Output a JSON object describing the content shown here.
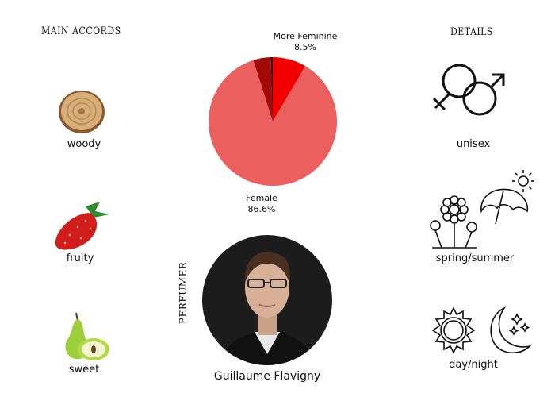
{
  "left": {
    "heading": "MAIN ACCORDS",
    "accords": [
      {
        "label": "woody",
        "icon": "wood-slice-icon"
      },
      {
        "label": "fruity",
        "icon": "strawberry-icon"
      },
      {
        "label": "sweet",
        "icon": "pear-icon"
      }
    ]
  },
  "right": {
    "heading": "DETAILS",
    "items": [
      {
        "label": "unisex",
        "icon": "gender-symbols-icon"
      },
      {
        "label": "spring/summer",
        "icon": "flowers-umbrella-sun-icon"
      },
      {
        "label": "day/night",
        "icon": "sun-moon-icon"
      }
    ]
  },
  "chart_data": {
    "type": "pie",
    "start": "top",
    "direction": "clockwise",
    "slices": [
      {
        "label": "More Feminine",
        "value": 8.5,
        "value_label": "8.5%",
        "color": "#f20000"
      },
      {
        "label": "Female",
        "value": 86.6,
        "value_label": "86.6%",
        "color": "#eb5f5f"
      },
      {
        "value": 4.4,
        "color": "#a20a0a"
      },
      {
        "value": 0.5,
        "color": "#2a0505"
      }
    ]
  },
  "perfumer": {
    "heading": "PERFUMER",
    "name": "Guillaume Flavigny"
  }
}
